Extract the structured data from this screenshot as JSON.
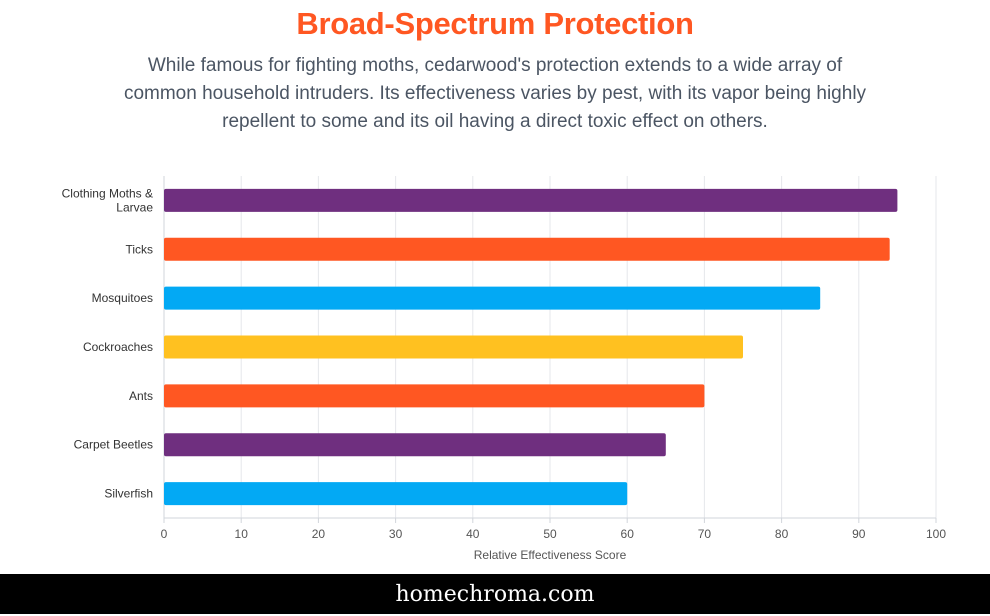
{
  "header": {
    "title": "Broad-Spectrum Protection",
    "subtitle": "While famous for fighting moths, cedarwood's protection extends to a wide array of common household intruders. Its effectiveness varies by pest, with its vapor being highly repellent to some and its oil having a direct toxic effect on others."
  },
  "chart_data": {
    "type": "bar",
    "orientation": "horizontal",
    "title": "",
    "xlabel": "Relative Effectiveness Score",
    "ylabel": "",
    "xlim": [
      0,
      100
    ],
    "xticks": [
      0,
      10,
      20,
      30,
      40,
      50,
      60,
      70,
      80,
      90,
      100
    ],
    "grid": true,
    "categories": [
      [
        "Clothing Moths &",
        "Larvae"
      ],
      [
        "Ticks"
      ],
      [
        "Mosquitoes"
      ],
      [
        "Cockroaches"
      ],
      [
        "Ants"
      ],
      [
        "Carpet Beetles"
      ],
      [
        "Silverfish"
      ]
    ],
    "values": [
      95,
      94,
      85,
      75,
      70,
      65,
      60
    ],
    "colors": [
      "#6f2f7f",
      "#ff5722",
      "#03a9f4",
      "#ffc120",
      "#ff5722",
      "#6f2f7f",
      "#03a9f4"
    ]
  },
  "footer": {
    "site": "homechroma.com"
  }
}
